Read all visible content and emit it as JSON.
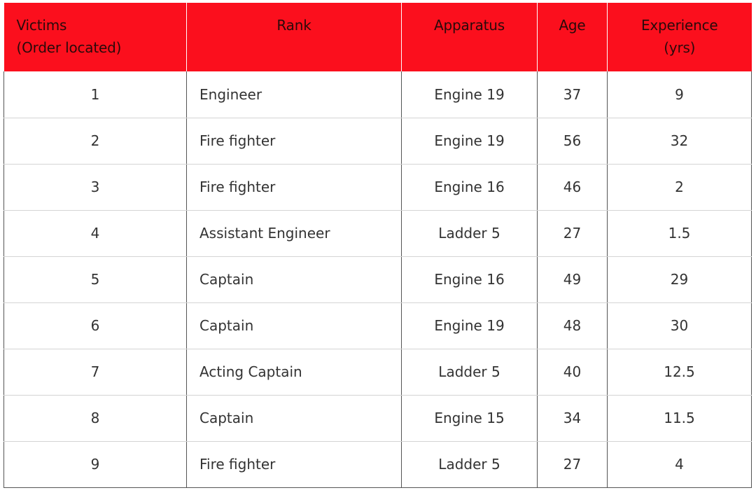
{
  "table": {
    "headers": [
      {
        "line1": "Victims",
        "line2": "(Order located)"
      },
      {
        "line1": "Rank",
        "line2": ""
      },
      {
        "line1": "Apparatus",
        "line2": ""
      },
      {
        "line1": "Age",
        "line2": ""
      },
      {
        "line1": "Experience",
        "line2": "(yrs)"
      }
    ],
    "rows": [
      [
        "1",
        "Engineer",
        "Engine 19",
        "37",
        "9"
      ],
      [
        "2",
        "Fire fighter",
        "Engine 19",
        "56",
        "32"
      ],
      [
        "3",
        "Fire fighter",
        "Engine 16",
        "46",
        "2"
      ],
      [
        "4",
        "Assistant Engineer",
        "Ladder 5",
        "27",
        "1.5"
      ],
      [
        "5",
        "Captain",
        "Engine 16",
        "49",
        "29"
      ],
      [
        "6",
        "Captain",
        "Engine 19",
        "48",
        "30"
      ],
      [
        "7",
        "Acting Captain",
        "Ladder 5",
        "40",
        "12.5"
      ],
      [
        "8",
        "Captain",
        "Engine 15",
        "34",
        "11.5"
      ],
      [
        "9",
        "Fire fighter",
        "Ladder 5",
        "27",
        "4"
      ]
    ]
  },
  "colors": {
    "header_bg": "#fb0f1d",
    "header_text": "#2a0a0a",
    "body_text": "#333333"
  }
}
